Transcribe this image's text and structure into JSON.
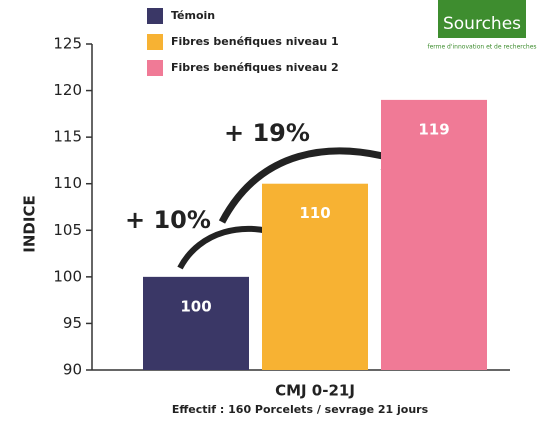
{
  "chart_data": {
    "type": "bar",
    "categories": [
      "CMJ 0-21J"
    ],
    "xlabel": "Effectif : 160 Porcelets / sevrage 21 jours",
    "ylabel": "INDICE",
    "series": [
      {
        "name": "Témoin",
        "color": "#3a3766",
        "values": [
          100
        ]
      },
      {
        "name": "Fibres benéfiques niveau 1",
        "color": "#f7b233",
        "values": [
          110
        ]
      },
      {
        "name": "Fibres benéfiques niveau 2",
        "color": "#f07a96",
        "values": [
          119
        ]
      }
    ],
    "annotations": [
      "+ 10%",
      "+ 19%"
    ],
    "ylim": [
      90,
      125
    ],
    "yticks": [
      90,
      95,
      100,
      105,
      110,
      115,
      120,
      125
    ],
    "grid": false,
    "legend": "top"
  },
  "logo": {
    "name": "Sourches",
    "tagline": "ferme d'innovation et de recherches"
  }
}
